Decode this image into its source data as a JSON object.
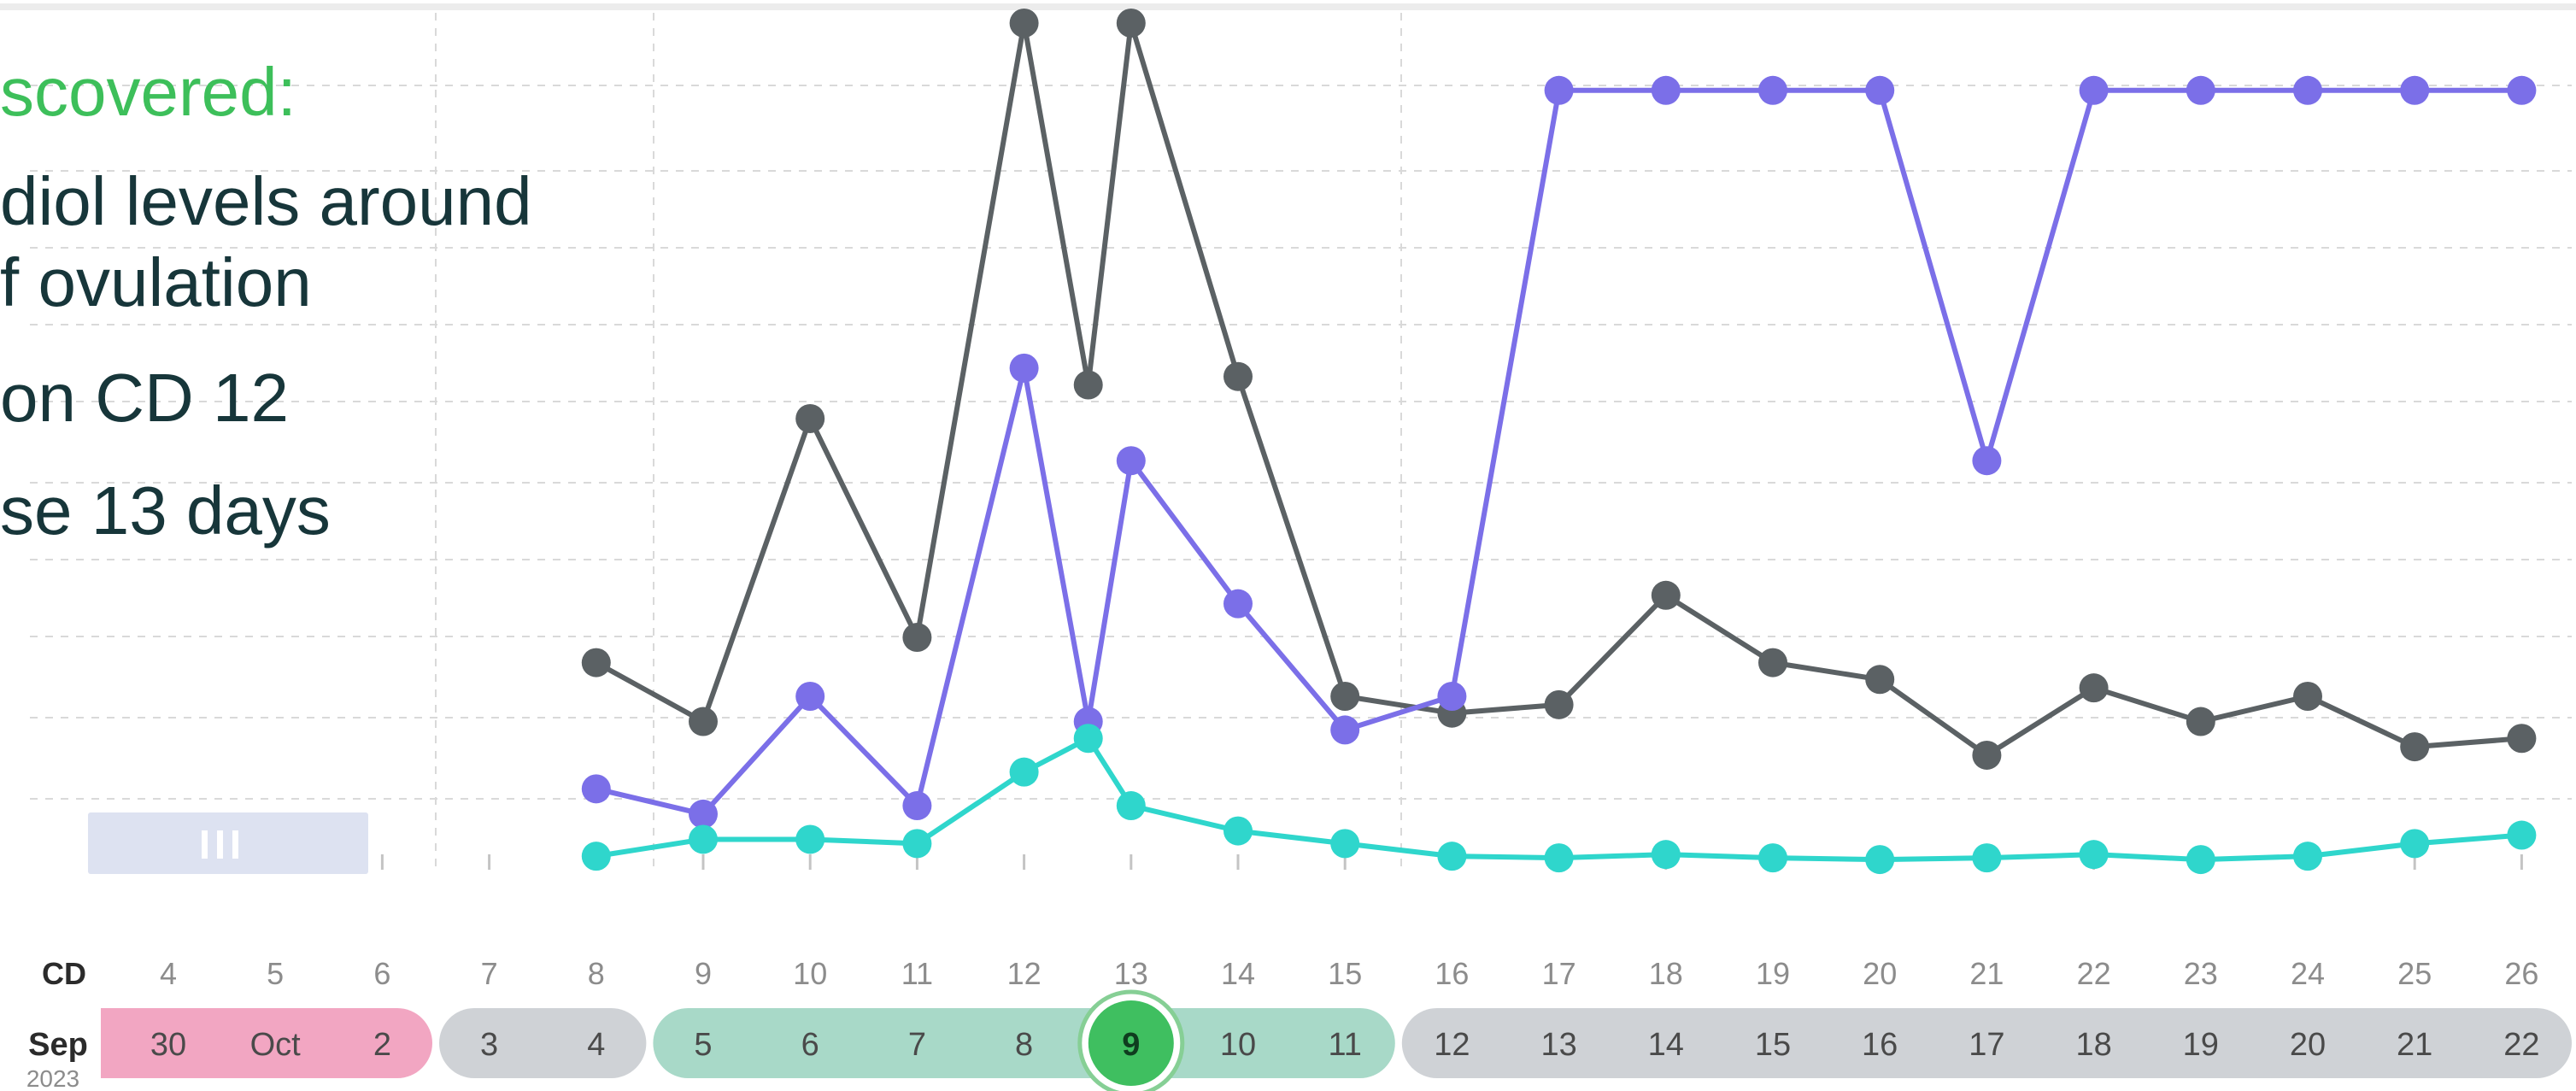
{
  "overlay": {
    "title": "scovered:",
    "lines": [
      "diol levels around",
      "f ovulation",
      "on CD 12",
      "se 13 days"
    ]
  },
  "chart_data": {
    "type": "line",
    "x": [
      8,
      9,
      10,
      11,
      12,
      12.6,
      13,
      14,
      15,
      16,
      17,
      18,
      19,
      20,
      21,
      22,
      23,
      24,
      25,
      26
    ],
    "ylim": [
      0,
      100
    ],
    "grid": true,
    "series": [
      {
        "color": "#5b6164",
        "values": [
          24,
          17,
          53,
          27,
          100,
          57,
          100,
          58,
          20,
          18,
          19,
          32,
          24,
          22,
          13,
          21,
          17,
          20,
          14,
          15
        ]
      },
      {
        "color": "#7b6fe8",
        "values": [
          9,
          6,
          20,
          7,
          59,
          17,
          48,
          31,
          16,
          20,
          92,
          92,
          92,
          92,
          48,
          92,
          92,
          92,
          92,
          92
        ]
      },
      {
        "color": "#2fd6cc",
        "values": [
          1,
          3,
          3,
          2.5,
          11,
          15,
          7,
          4,
          2.5,
          1,
          0.8,
          1.2,
          0.8,
          0.6,
          0.8,
          1.2,
          0.6,
          1,
          2.5,
          3.5
        ]
      }
    ],
    "cycle_day_label": "CD",
    "cycle_days": [
      "4",
      "5",
      "6",
      "7",
      "8",
      "9",
      "10",
      "11",
      "12",
      "13",
      "14",
      "15",
      "16",
      "17",
      "18",
      "19",
      "20",
      "21",
      "22",
      "23",
      "24",
      "25",
      "26"
    ],
    "month_label": "Sep",
    "year_label": "2023",
    "dates": [
      "30",
      "Oct",
      "2",
      "3",
      "4",
      "5",
      "6",
      "7",
      "8",
      "9",
      "10",
      "11",
      "12",
      "13",
      "14",
      "15",
      "16",
      "17",
      "18",
      "19",
      "20",
      "21",
      "22"
    ],
    "date_groups": [
      {
        "kind": "period",
        "from": 0,
        "to": 2,
        "color": "#f2a6c2"
      },
      {
        "kind": "neutral",
        "from": 3,
        "to": 4,
        "color": "#cfd2d6"
      },
      {
        "kind": "fertile",
        "from": 5,
        "to": 11,
        "color": "#a8d9c8"
      },
      {
        "kind": "neutral",
        "from": 12,
        "to": 22,
        "color": "#cfd2d6"
      }
    ],
    "ovulation_index": 9,
    "ovulation_color": "#3fbf60"
  }
}
